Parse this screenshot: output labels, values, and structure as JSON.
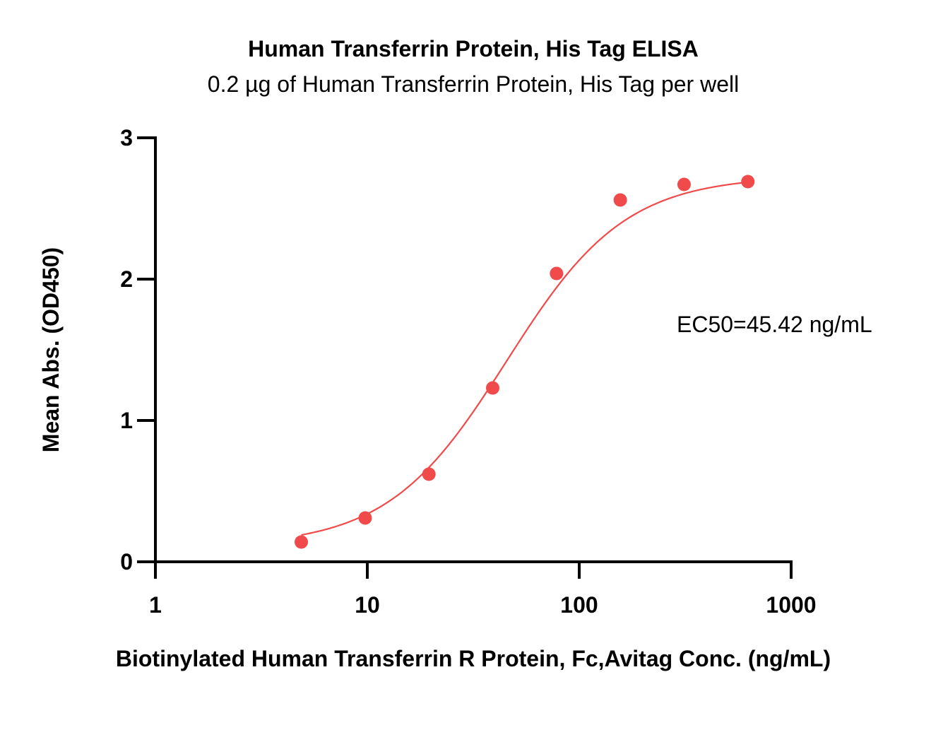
{
  "chart_data": {
    "type": "scatter",
    "title": "Human Transferrin Protein, His Tag ELISA",
    "subtitle": "0.2 µg of Human Transferrin Protein, His Tag per well",
    "xlabel": "Biotinylated Human Transferrin R Protein, Fc,Avitag Conc. (ng/mL)",
    "ylabel": "Mean Abs. (OD450)",
    "x_scale": "log",
    "xlim": [
      1,
      1000
    ],
    "ylim": [
      0,
      3
    ],
    "x_ticks": [
      "1",
      "10",
      "100",
      "1000"
    ],
    "y_ticks": [
      "0",
      "1",
      "2",
      "3"
    ],
    "grid": false,
    "legend": "none",
    "annotation": "EC50=45.42 ng/mL",
    "series": [
      {
        "color": "#f04a4a",
        "x": [
          4.88,
          9.77,
          19.53,
          39.06,
          78.13,
          156.25,
          312.5,
          625
        ],
        "y": [
          0.14,
          0.31,
          0.62,
          1.23,
          2.04,
          2.56,
          2.67,
          2.69
        ],
        "fit": {
          "model": "4PL",
          "bottom": 0.11,
          "top": 2.73,
          "ec50": 45.42,
          "hill": 1.55,
          "x_range": [
            4.88,
            625
          ]
        }
      }
    ]
  }
}
